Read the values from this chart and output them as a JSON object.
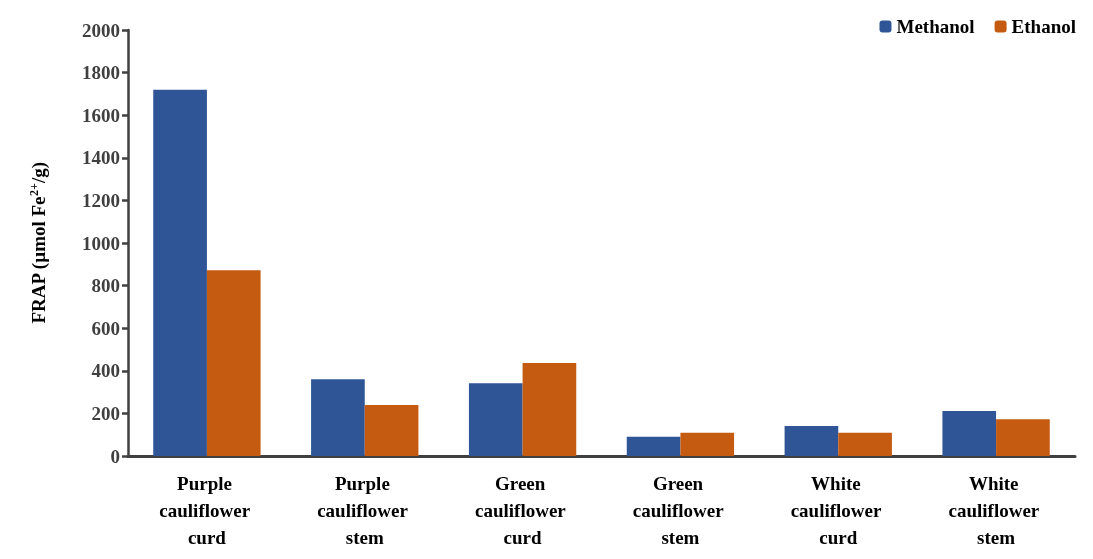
{
  "chart_data": {
    "type": "bar",
    "ylabel": "FRAP (µmol Fe$^{2+}$/g)",
    "categories": [
      "Purple cauliflower curd",
      "Purple cauliflower stem",
      "Green cauliflower curd",
      "Green cauliflower stem",
      "White cauliflower curd",
      "White cauliflower stem"
    ],
    "series": [
      {
        "name": "Methanol",
        "color": "#2f5597",
        "values": [
          1720,
          360,
          342,
          90,
          141,
          211
        ]
      },
      {
        "name": "Ethanol",
        "color": "#c55a11",
        "values": [
          872,
          240,
          437,
          109,
          109,
          172
        ]
      }
    ],
    "ylim": [
      0,
      2000
    ],
    "yticks": [
      0,
      200,
      400,
      600,
      800,
      1000,
      1200,
      1400,
      1600,
      1800,
      2000
    ],
    "grid": false,
    "legend": "top right"
  }
}
